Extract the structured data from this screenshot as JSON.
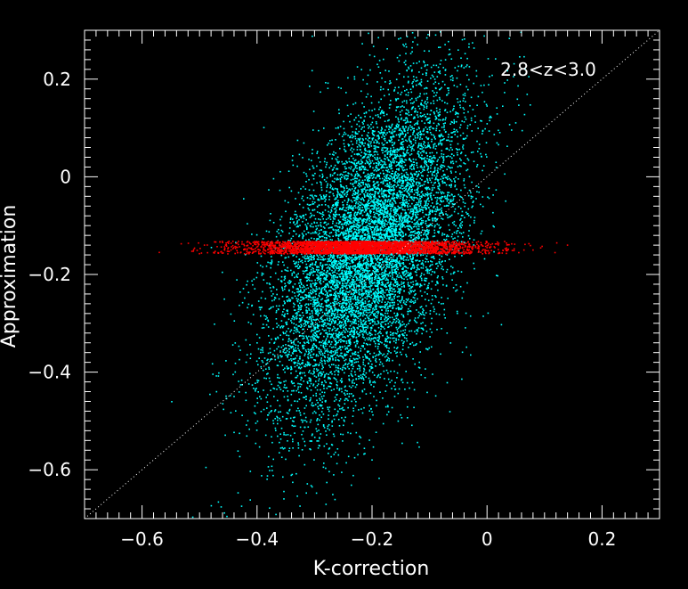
{
  "chart_data": {
    "type": "scatter",
    "title": "",
    "annotation": "2.8<z<3.0",
    "xlabel": "K-correction",
    "ylabel": "Approximation",
    "xlim": [
      -0.7,
      0.3
    ],
    "ylim": [
      -0.7,
      0.3
    ],
    "xticks": [
      -0.6,
      -0.4,
      -0.2,
      0,
      0.2
    ],
    "xtick_labels": [
      "−0.6",
      "−0.4",
      "−0.2",
      "0",
      "0.2"
    ],
    "yticks": [
      -0.6,
      -0.4,
      -0.2,
      0,
      0.2
    ],
    "ytick_labels": [
      "−0.6",
      "−0.4",
      "−0.2",
      "0",
      "0.2"
    ],
    "grid": false,
    "reference_line": {
      "style": "dotted",
      "color": "#ffffff",
      "slope": 1,
      "intercept": 0
    },
    "series": [
      {
        "color": "#00ffff",
        "distribution": {
          "x_mean": -0.205,
          "x_sd": 0.085,
          "y_mean": -0.15,
          "y_sd": 0.17,
          "corr": 0.55,
          "count": 9000
        },
        "values": [
          [
            -0.14,
            -0.02
          ],
          [
            -0.18,
            -0.08
          ],
          [
            -0.22,
            -0.16
          ],
          [
            -0.26,
            -0.25
          ],
          [
            -0.12,
            0.06
          ],
          [
            -0.3,
            -0.33
          ],
          [
            -0.1,
            0.12
          ],
          [
            -0.24,
            -0.45
          ],
          [
            -0.2,
            -0.58
          ],
          [
            -0.08,
            -0.05
          ]
        ]
      },
      {
        "color": "#ff0000",
        "distribution": {
          "x_mean": -0.22,
          "x_sd": 0.1,
          "x_range": [
            -0.57,
            0.14
          ],
          "y_center": -0.145,
          "y_halfwidth": 0.013,
          "count": 3500
        },
        "values": [
          [
            -0.57,
            -0.155
          ],
          [
            -0.45,
            -0.145
          ],
          [
            -0.3,
            -0.14
          ],
          [
            -0.2,
            -0.15
          ],
          [
            -0.1,
            -0.14
          ],
          [
            0.0,
            -0.145
          ],
          [
            0.08,
            -0.15
          ],
          [
            0.14,
            -0.14
          ]
        ]
      }
    ]
  }
}
